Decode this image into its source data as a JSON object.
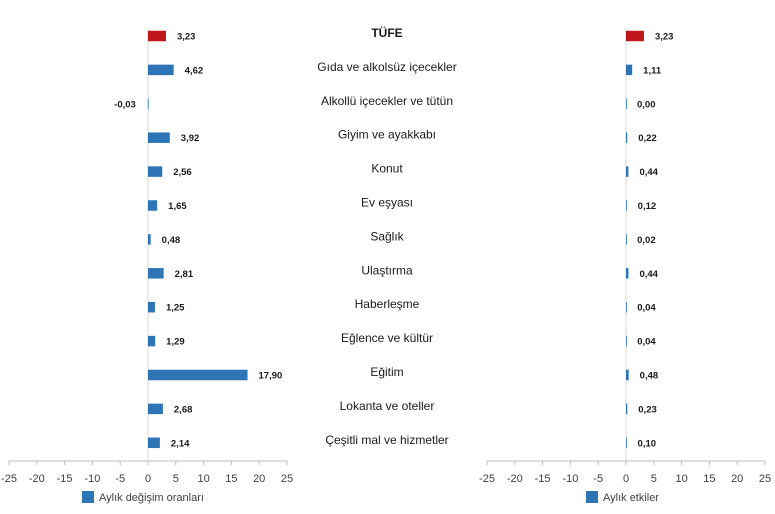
{
  "chart_data": [
    {
      "type": "bar",
      "orientation": "horizontal",
      "categories": [
        "TÜFE",
        "Gıda ve alkolsüz içecekler",
        "Alkollü içecekler ve tütün",
        "Giyim ve ayakkabı",
        "Konut",
        "Ev eşyası",
        "Sağlık",
        "Ulaştırma",
        "Haberleşme",
        "Eğlence ve kültür",
        "Eğitim",
        "Lokanta ve oteller",
        "Çeşitli mal ve hizmetler"
      ],
      "series": [
        {
          "name": "Aylık değişim oranları",
          "values": [
            3.23,
            4.62,
            -0.03,
            3.92,
            2.56,
            1.65,
            0.48,
            2.81,
            1.25,
            1.29,
            17.9,
            2.68,
            2.14
          ],
          "labels": [
            "3,23",
            "4,62",
            "-0,03",
            "3,92",
            "2,56",
            "1,65",
            "0,48",
            "2,81",
            "1,25",
            "1,29",
            "17,90",
            "2,68",
            "2,14"
          ]
        }
      ],
      "highlight_category": "TÜFE",
      "xlim": [
        -25,
        25
      ],
      "xticks": [
        -25,
        -20,
        -15,
        -10,
        -5,
        0,
        5,
        10,
        15,
        20,
        25
      ],
      "title": "",
      "xlabel": "",
      "ylabel": "",
      "legend": "bottom-left",
      "grid": false
    },
    {
      "type": "bar",
      "orientation": "horizontal",
      "categories": [
        "TÜFE",
        "Gıda ve alkolsüz içecekler",
        "Alkollü içecekler ve tütün",
        "Giyim ve ayakkabı",
        "Konut",
        "Ev eşyası",
        "Sağlık",
        "Ulaştırma",
        "Haberleşme",
        "Eğlence ve kültür",
        "Eğitim",
        "Lokanta ve oteller",
        "Çeşitli mal ve hizmetler"
      ],
      "series": [
        {
          "name": "Aylık etkiler",
          "values": [
            3.23,
            1.11,
            0.0,
            0.22,
            0.44,
            0.12,
            0.02,
            0.44,
            0.04,
            0.04,
            0.48,
            0.23,
            0.1
          ],
          "labels": [
            "3,23",
            "1,11",
            "0,00",
            "0,22",
            "0,44",
            "0,12",
            "0,02",
            "0,44",
            "0,04",
            "0,04",
            "0,48",
            "0,23",
            "0,10"
          ]
        }
      ],
      "highlight_category": "TÜFE",
      "xlim": [
        -25,
        25
      ],
      "xticks": [
        -25,
        -20,
        -15,
        -10,
        -5,
        0,
        5,
        10,
        15,
        20,
        25
      ],
      "title": "",
      "xlabel": "",
      "ylabel": "",
      "legend": "bottom-left",
      "grid": false
    }
  ],
  "colors": {
    "bar": "#2e75b6",
    "highlight": "#c0171d",
    "axis": "#bfbfbf",
    "text": "#1a1a1a"
  }
}
